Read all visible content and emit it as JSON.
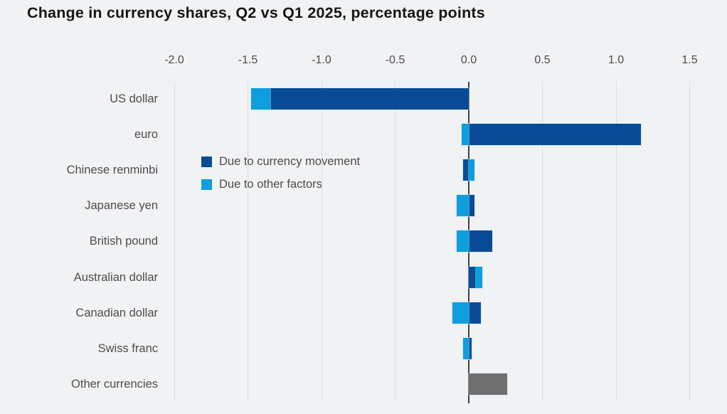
{
  "title": "Change in currency shares, Q2 vs Q1 2025, percentage points",
  "legend": [
    {
      "label": "Due to currency movement",
      "color": "#084c97"
    },
    {
      "label": "Due to other factors",
      "color": "#0d9edd"
    }
  ],
  "colors": {
    "dark_blue": "#084c97",
    "light_blue": "#0d9edd",
    "gray_bar": "#6f6f6f",
    "background": "#f1f2f4",
    "gridline": "#dcddDF",
    "zero_line": "#3f4040",
    "text": "#4c4c4c",
    "title_text": "#161616"
  },
  "axis": {
    "tick_labels": [
      "-2.0",
      "-1.5",
      "-1.0",
      "-0.5",
      "0.0",
      "0.5",
      "1.0",
      "1.5"
    ]
  },
  "chart_data": {
    "type": "bar",
    "orientation": "horizontal",
    "stacked": true,
    "title": "Change in currency shares, Q2 vs Q1 2025, percentage points",
    "xlabel": "percentage points",
    "ylabel": "",
    "xticks": [
      -2.0,
      -1.5,
      -1.0,
      -0.5,
      0.0,
      0.5,
      1.0,
      1.5
    ],
    "xlim": [
      -2.2,
      1.75
    ],
    "grid": true,
    "legend_position": "inside-upper-left",
    "categories": [
      "US dollar",
      "euro",
      "Chinese renminbi",
      "Japanese yen",
      "British pound",
      "Australian dollar",
      "Canadian dollar",
      "Swiss franc",
      "Other currencies"
    ],
    "series": [
      {
        "name": "Due to currency movement",
        "color": "#084c97",
        "values": [
          -1.35,
          1.17,
          -0.04,
          0.04,
          0.16,
          0.05,
          0.08,
          0.02,
          null
        ]
      },
      {
        "name": "Due to other factors",
        "color": "#0d9edd",
        "values": [
          -0.13,
          -0.05,
          0.04,
          -0.08,
          -0.08,
          0.04,
          -0.11,
          -0.04,
          null
        ]
      },
      {
        "name": "Other currencies",
        "color": "#6f6f6f",
        "values": [
          null,
          null,
          null,
          null,
          null,
          null,
          null,
          null,
          0.26
        ]
      }
    ]
  }
}
